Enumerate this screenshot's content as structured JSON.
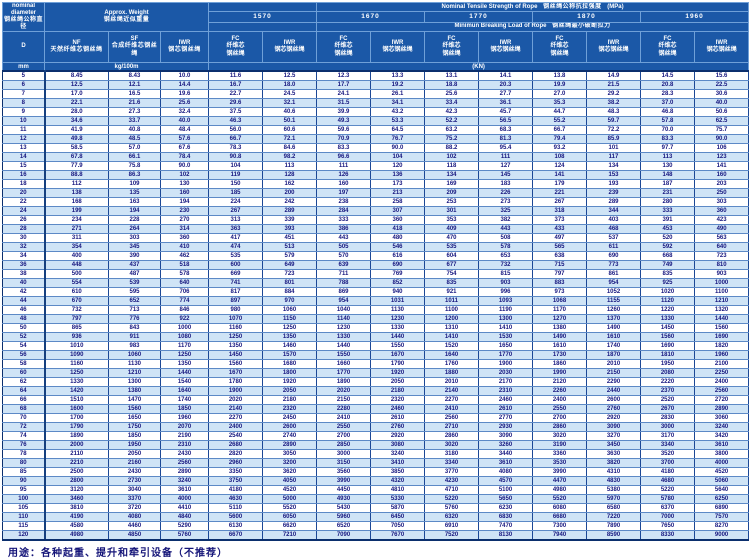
{
  "page": {
    "footer_note": "用途：各种起重、提升和牵引设备（不推荐）"
  },
  "table": {
    "corner": {
      "line1": "nominal",
      "line2": "diameter",
      "line3": "钢丝绳公称直径",
      "symbol": "D",
      "unit": "mm"
    },
    "weight": {
      "title_en": "Approx. Weight",
      "title_zh": "钢丝绳近似重量",
      "unit": "kg/100m",
      "columns": [
        {
          "code": "NF",
          "zh": "天然纤维芯钢丝绳"
        },
        {
          "code": "SF",
          "zh": "合成纤维芯钢丝绳"
        },
        {
          "code": "IWR",
          "zh": "钢芯钢丝绳"
        }
      ]
    },
    "strength": {
      "title_en": "Nominal Tensile Strength of Rope",
      "title_zh": "钢丝绳公称抗拉强度",
      "title_unit": "(MPa)",
      "grades": [
        "1570",
        "1670",
        "1770",
        "1870",
        "1960"
      ],
      "breaking_en": "Minimun Breaking Load of Rope",
      "breaking_zh": "钢丝绳最小破断拉力",
      "unit": "(KN)",
      "sub_fc": {
        "code": "FC",
        "zh1": "纤维芯",
        "zh2": "钢丝绳"
      },
      "sub_iwr": {
        "code": "IWR",
        "zh": "钢芯钢丝绳"
      }
    },
    "rows": [
      [
        "5",
        "8.45",
        "8.43",
        "10.0",
        "11.6",
        "12.5",
        "12.3",
        "13.3",
        "13.1",
        "14.1",
        "13.8",
        "14.9",
        "14.5",
        "15.6"
      ],
      [
        "6",
        "12.5",
        "12.1",
        "14.4",
        "16.7",
        "18.0",
        "17.7",
        "19.2",
        "18.8",
        "20.3",
        "19.9",
        "21.5",
        "20.8",
        "22.5"
      ],
      [
        "7",
        "17.0",
        "16.5",
        "19.6",
        "22.7",
        "24.5",
        "24.1",
        "26.1",
        "25.6",
        "27.7",
        "27.0",
        "29.2",
        "28.3",
        "30.6"
      ],
      [
        "8",
        "22.1",
        "21.6",
        "25.6",
        "29.6",
        "32.1",
        "31.5",
        "34.1",
        "33.4",
        "36.1",
        "35.3",
        "38.2",
        "37.0",
        "40.0"
      ],
      [
        "9",
        "28.0",
        "27.3",
        "32.4",
        "37.5",
        "40.6",
        "39.9",
        "43.2",
        "42.3",
        "45.7",
        "44.7",
        "48.3",
        "46.8",
        "50.6"
      ],
      [
        "10",
        "34.6",
        "33.7",
        "40.0",
        "46.3",
        "50.1",
        "49.3",
        "53.3",
        "52.2",
        "56.5",
        "55.2",
        "59.7",
        "57.8",
        "62.5"
      ],
      [
        "11",
        "41.9",
        "40.8",
        "48.4",
        "56.0",
        "60.6",
        "59.6",
        "64.5",
        "63.2",
        "68.3",
        "66.7",
        "72.2",
        "70.0",
        "75.7"
      ],
      [
        "12",
        "49.8",
        "48.5",
        "57.6",
        "66.7",
        "72.1",
        "70.9",
        "76.7",
        "75.2",
        "81.3",
        "79.4",
        "85.9",
        "83.3",
        "90.0"
      ],
      [
        "13",
        "58.5",
        "57.0",
        "67.6",
        "78.3",
        "84.6",
        "83.3",
        "90.0",
        "88.2",
        "95.4",
        "93.2",
        "101",
        "97.7",
        "106"
      ],
      [
        "14",
        "67.8",
        "66.1",
        "78.4",
        "90.8",
        "98.2",
        "96.6",
        "104",
        "102",
        "111",
        "108",
        "117",
        "113",
        "123"
      ],
      [
        "15",
        "77.9",
        "75.8",
        "90.0",
        "104",
        "113",
        "111",
        "120",
        "118",
        "127",
        "124",
        "134",
        "130",
        "141"
      ],
      [
        "16",
        "88.8",
        "86.3",
        "102",
        "119",
        "128",
        "126",
        "136",
        "134",
        "145",
        "141",
        "153",
        "148",
        "160"
      ],
      [
        "18",
        "112",
        "109",
        "130",
        "150",
        "162",
        "160",
        "173",
        "169",
        "183",
        "179",
        "193",
        "187",
        "203"
      ],
      [
        "20",
        "138",
        "135",
        "160",
        "185",
        "200",
        "197",
        "213",
        "209",
        "226",
        "221",
        "239",
        "231",
        "250"
      ],
      [
        "22",
        "168",
        "163",
        "194",
        "224",
        "242",
        "238",
        "258",
        "253",
        "273",
        "267",
        "289",
        "280",
        "303"
      ],
      [
        "24",
        "199",
        "194",
        "230",
        "267",
        "289",
        "284",
        "307",
        "301",
        "325",
        "318",
        "344",
        "333",
        "360"
      ],
      [
        "26",
        "234",
        "228",
        "270",
        "313",
        "339",
        "333",
        "360",
        "353",
        "382",
        "373",
        "403",
        "391",
        "423"
      ],
      [
        "28",
        "271",
        "264",
        "314",
        "363",
        "393",
        "386",
        "418",
        "409",
        "443",
        "433",
        "468",
        "453",
        "490"
      ],
      [
        "30",
        "311",
        "303",
        "360",
        "417",
        "451",
        "443",
        "480",
        "470",
        "508",
        "497",
        "537",
        "520",
        "563"
      ],
      [
        "32",
        "354",
        "345",
        "410",
        "474",
        "513",
        "505",
        "546",
        "535",
        "578",
        "565",
        "611",
        "592",
        "640"
      ],
      [
        "34",
        "400",
        "390",
        "462",
        "535",
        "579",
        "570",
        "616",
        "604",
        "653",
        "638",
        "690",
        "668",
        "723"
      ],
      [
        "36",
        "448",
        "437",
        "518",
        "600",
        "649",
        "639",
        "690",
        "677",
        "732",
        "715",
        "773",
        "749",
        "810"
      ],
      [
        "38",
        "500",
        "487",
        "578",
        "669",
        "723",
        "711",
        "769",
        "754",
        "815",
        "797",
        "861",
        "835",
        "903"
      ],
      [
        "40",
        "554",
        "539",
        "640",
        "741",
        "801",
        "788",
        "852",
        "835",
        "903",
        "883",
        "954",
        "925",
        "1000"
      ],
      [
        "42",
        "610",
        "595",
        "706",
        "817",
        "884",
        "869",
        "940",
        "921",
        "996",
        "973",
        "1052",
        "1020",
        "1100"
      ],
      [
        "44",
        "670",
        "652",
        "774",
        "897",
        "970",
        "954",
        "1031",
        "1011",
        "1093",
        "1068",
        "1155",
        "1120",
        "1210"
      ],
      [
        "46",
        "732",
        "713",
        "846",
        "980",
        "1060",
        "1040",
        "1130",
        "1100",
        "1190",
        "1170",
        "1260",
        "1220",
        "1320"
      ],
      [
        "48",
        "797",
        "776",
        "922",
        "1070",
        "1150",
        "1140",
        "1230",
        "1200",
        "1300",
        "1270",
        "1370",
        "1330",
        "1440"
      ],
      [
        "50",
        "865",
        "843",
        "1000",
        "1160",
        "1250",
        "1230",
        "1330",
        "1310",
        "1410",
        "1380",
        "1490",
        "1450",
        "1560"
      ],
      [
        "52",
        "936",
        "911",
        "1080",
        "1250",
        "1350",
        "1330",
        "1440",
        "1410",
        "1530",
        "1490",
        "1610",
        "1560",
        "1690"
      ],
      [
        "54",
        "1010",
        "983",
        "1170",
        "1350",
        "1460",
        "1440",
        "1550",
        "1520",
        "1650",
        "1610",
        "1740",
        "1690",
        "1820"
      ],
      [
        "56",
        "1090",
        "1060",
        "1250",
        "1450",
        "1570",
        "1550",
        "1670",
        "1640",
        "1770",
        "1730",
        "1870",
        "1810",
        "1960"
      ],
      [
        "58",
        "1160",
        "1130",
        "1350",
        "1560",
        "1680",
        "1660",
        "1790",
        "1760",
        "1900",
        "1860",
        "2010",
        "1950",
        "2100"
      ],
      [
        "60",
        "1250",
        "1210",
        "1440",
        "1670",
        "1800",
        "1770",
        "1920",
        "1880",
        "2030",
        "1990",
        "2150",
        "2080",
        "2250"
      ],
      [
        "62",
        "1330",
        "1300",
        "1540",
        "1780",
        "1920",
        "1890",
        "2050",
        "2010",
        "2170",
        "2120",
        "2290",
        "2220",
        "2400"
      ],
      [
        "64",
        "1420",
        "1380",
        "1640",
        "1900",
        "2050",
        "2020",
        "2180",
        "2140",
        "2310",
        "2260",
        "2440",
        "2370",
        "2560"
      ],
      [
        "66",
        "1510",
        "1470",
        "1740",
        "2020",
        "2180",
        "2150",
        "2320",
        "2270",
        "2460",
        "2400",
        "2600",
        "2520",
        "2720"
      ],
      [
        "68",
        "1600",
        "1560",
        "1850",
        "2140",
        "2320",
        "2280",
        "2460",
        "2410",
        "2610",
        "2550",
        "2760",
        "2670",
        "2890"
      ],
      [
        "70",
        "1700",
        "1650",
        "1960",
        "2270",
        "2450",
        "2410",
        "2610",
        "2560",
        "2770",
        "2700",
        "2920",
        "2830",
        "3060"
      ],
      [
        "72",
        "1790",
        "1750",
        "2070",
        "2400",
        "2600",
        "2550",
        "2760",
        "2710",
        "2930",
        "2860",
        "3090",
        "3000",
        "3240"
      ],
      [
        "74",
        "1890",
        "1850",
        "2190",
        "2540",
        "2740",
        "2700",
        "2920",
        "2860",
        "3090",
        "3020",
        "3270",
        "3170",
        "3420"
      ],
      [
        "76",
        "2000",
        "1950",
        "2310",
        "2680",
        "2890",
        "2850",
        "3080",
        "3020",
        "3260",
        "3190",
        "3450",
        "3340",
        "3610"
      ],
      [
        "78",
        "2110",
        "2050",
        "2430",
        "2820",
        "3050",
        "3000",
        "3240",
        "3180",
        "3440",
        "3360",
        "3630",
        "3520",
        "3800"
      ],
      [
        "80",
        "2210",
        "2160",
        "2560",
        "2960",
        "3200",
        "3150",
        "3410",
        "3340",
        "3610",
        "3530",
        "3820",
        "3700",
        "4000"
      ],
      [
        "85",
        "2500",
        "2430",
        "2890",
        "3350",
        "3620",
        "3560",
        "3850",
        "3770",
        "4080",
        "3990",
        "4310",
        "4180",
        "4520"
      ],
      [
        "90",
        "2800",
        "2730",
        "3240",
        "3750",
        "4050",
        "3990",
        "4320",
        "4230",
        "4570",
        "4470",
        "4830",
        "4680",
        "5060"
      ],
      [
        "95",
        "3120",
        "3040",
        "3610",
        "4180",
        "4520",
        "4450",
        "4810",
        "4710",
        "5100",
        "4980",
        "5380",
        "5220",
        "5640"
      ],
      [
        "100",
        "3460",
        "3370",
        "4000",
        "4630",
        "5000",
        "4930",
        "5330",
        "5220",
        "5650",
        "5520",
        "5970",
        "5780",
        "6250"
      ],
      [
        "105",
        "3810",
        "3720",
        "4410",
        "5110",
        "5520",
        "5430",
        "5870",
        "5760",
        "6230",
        "6080",
        "6580",
        "6370",
        "6890"
      ],
      [
        "110",
        "4190",
        "4080",
        "4840",
        "5600",
        "6050",
        "5960",
        "6450",
        "6320",
        "6830",
        "6680",
        "7220",
        "7000",
        "7570"
      ],
      [
        "115",
        "4580",
        "4460",
        "5290",
        "6130",
        "6620",
        "6520",
        "7050",
        "6910",
        "7470",
        "7300",
        "7890",
        "7650",
        "8270"
      ],
      [
        "120",
        "4980",
        "4850",
        "5760",
        "6670",
        "7210",
        "7090",
        "7670",
        "7520",
        "8130",
        "7940",
        "8590",
        "8330",
        "9000"
      ]
    ]
  }
}
